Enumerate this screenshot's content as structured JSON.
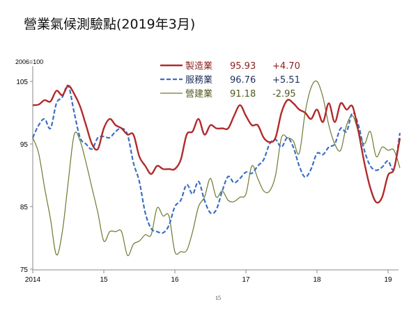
{
  "title": "營業氣候測驗點(2019年3月)",
  "unit_label": "2006=100",
  "page_number": "15",
  "chart_data": {
    "type": "line",
    "title": "營業氣候測驗點(2019年3月)",
    "ylabel": "2006=100",
    "ylim": [
      75,
      107
    ],
    "yticks": [
      "75",
      "85",
      "95",
      "105"
    ],
    "xticks": [
      "2014",
      "15",
      "16",
      "17",
      "18",
      "19"
    ],
    "x_start": "2014-01",
    "x_end": "2019-03",
    "frequency": "monthly",
    "grid": false,
    "legend_position": "top-center",
    "series": [
      {
        "name": "製造業",
        "latest": "95.93",
        "change": "+4.70",
        "color": "#b22a2a",
        "style": "solid-thick",
        "values": [
          101.2,
          101.3,
          102,
          101.8,
          103.5,
          102.8,
          104.3,
          103,
          101,
          98,
          95,
          94.2,
          97.5,
          99,
          98,
          97.5,
          96.5,
          96.5,
          93,
          91.5,
          90.2,
          91.5,
          91,
          91,
          91,
          92.5,
          96.5,
          97,
          99,
          96.5,
          98,
          97.5,
          97.5,
          97.5,
          99.5,
          101.2,
          99.5,
          98,
          98,
          96,
          95.3,
          96,
          100,
          102,
          101.5,
          100.5,
          100,
          99,
          100.5,
          98.5,
          101.5,
          98.5,
          101.5,
          100.5,
          101,
          97,
          92,
          88,
          85.7,
          86.5,
          90,
          91,
          95.93
        ]
      },
      {
        "name": "服務業",
        "latest": "96.76",
        "change": "+5.51",
        "color": "#3a6fc4",
        "style": "dashed",
        "values": [
          96,
          98,
          99,
          97.5,
          101.5,
          102.5,
          104.3,
          100,
          96,
          95,
          94.2,
          96,
          96.2,
          96,
          97,
          97.5,
          96.5,
          92,
          89,
          84,
          81.5,
          81,
          80.8,
          82,
          85,
          86,
          88.5,
          87,
          89,
          86,
          84,
          84.5,
          87.5,
          89.8,
          88.8,
          89.5,
          90.5,
          90.3,
          91.5,
          92.5,
          95,
          95.7,
          94.5,
          96,
          94.5,
          91.5,
          89.7,
          91,
          93.5,
          93.3,
          94.5,
          95,
          97.5,
          97,
          100,
          98,
          94,
          91.5,
          90.8,
          91.3,
          92.3,
          91,
          96.76
        ]
      },
      {
        "name": "營建業",
        "latest": "91.18",
        "change": "-2.95",
        "color": "#6b7a2e",
        "style": "solid-thin",
        "values": [
          96,
          93.5,
          88,
          83,
          77.3,
          81,
          89,
          96.5,
          95.5,
          92,
          88,
          84,
          79.5,
          81,
          81,
          81,
          77.2,
          79,
          79.5,
          80.5,
          80.5,
          84.8,
          83.5,
          83.5,
          77.8,
          77.8,
          78,
          81,
          85,
          86.5,
          89.5,
          86.5,
          87.5,
          86,
          85.8,
          86.5,
          87,
          91.5,
          89.5,
          87.5,
          87.5,
          90,
          96,
          96,
          95.5,
          93.5,
          100,
          104,
          105,
          102.5,
          98,
          95,
          94,
          98,
          99.5,
          97,
          95,
          97,
          93,
          94.5,
          94,
          94,
          91.18
        ]
      }
    ]
  }
}
